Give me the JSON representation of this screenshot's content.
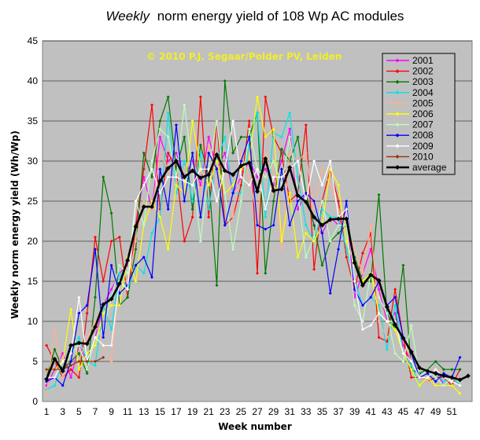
{
  "chart_data": {
    "type": "line",
    "title_em": "Weekly",
    "title_rest": "norm energy yield of 108 Wp AC modules",
    "xlabel": "Week number",
    "ylabel": "Weekly norm energy yield (Wh/Wp)",
    "copyright": "© 2010 P.J. Segaar/Polder PV, Leiden",
    "ylim": [
      0,
      45
    ],
    "xlim": [
      0.5,
      53.5
    ],
    "y_ticks": [
      0,
      5,
      10,
      15,
      20,
      25,
      30,
      35,
      40,
      45
    ],
    "x_ticks": [
      1,
      3,
      5,
      7,
      9,
      11,
      13,
      15,
      17,
      19,
      21,
      23,
      25,
      27,
      29,
      31,
      33,
      35,
      37,
      39,
      41,
      43,
      45,
      47,
      49,
      51
    ],
    "grid": true,
    "legend_position": "top-right",
    "weeks": [
      1,
      2,
      3,
      4,
      5,
      6,
      7,
      8,
      9,
      10,
      11,
      12,
      13,
      14,
      15,
      16,
      17,
      18,
      19,
      20,
      21,
      22,
      23,
      24,
      25,
      26,
      27,
      28,
      29,
      30,
      31,
      32,
      33,
      35,
      36,
      37,
      38,
      39,
      40,
      41,
      42,
      43,
      44,
      45,
      46,
      47,
      48,
      49,
      50,
      51,
      52,
      53,
      34
    ],
    "series": [
      {
        "name": "2001",
        "color": "#ff00ff",
        "values": [
          2.0,
          4.0,
          6.0,
          3.0,
          7.0,
          5.0,
          8.0,
          12.0,
          14.0,
          16.0,
          17.0,
          22.0,
          28.0,
          24.0,
          33.0,
          30.0,
          31.0,
          28.0,
          30.0,
          27.0,
          33.0,
          29.0,
          31.0,
          26.0,
          28.0,
          30.0,
          28.0,
          29.0,
          27.0,
          30.0,
          34.0,
          24.0,
          26.0,
          21.0,
          23.0,
          22.0,
          24.0,
          13.0,
          16.0,
          19.0,
          14.0,
          10.0,
          11.0,
          7.0,
          5.0,
          3.0,
          3.0,
          4.0,
          2.0,
          3.0,
          2.0,
          null,
          22.0
        ]
      },
      {
        "name": "2002",
        "color": "#ff0000",
        "values": [
          7.0,
          5.0,
          3.0,
          4.0,
          3.0,
          11.0,
          20.5,
          15.0,
          20.0,
          20.5,
          13.0,
          22.0,
          29.0,
          37.0,
          24.0,
          31.0,
          29.0,
          20.0,
          23.0,
          38.0,
          23.0,
          35.0,
          22.0,
          23.0,
          27.0,
          35.0,
          16.0,
          38.0,
          33.0,
          31.0,
          25.0,
          26.0,
          34.5,
          25.0,
          29.0,
          25.0,
          18.0,
          14.0,
          18.5,
          21.0,
          8.0,
          7.5,
          14.0,
          8.0,
          3.0,
          3.0,
          2.5,
          3.0,
          3.0,
          2.0,
          4.0,
          null,
          16.5
        ]
      },
      {
        "name": "2003",
        "color": "#007700",
        "values": [
          3.0,
          6.5,
          4.0,
          5.0,
          6.0,
          3.5,
          13.0,
          28.0,
          23.5,
          12.0,
          13.0,
          19.0,
          31.0,
          28.0,
          35.0,
          38.0,
          29.0,
          33.0,
          24.0,
          32.0,
          28.0,
          14.5,
          40.0,
          31.0,
          33.0,
          33.0,
          36.0,
          16.0,
          25.0,
          31.5,
          30.0,
          33.0,
          26.0,
          17.0,
          20.0,
          21.0,
          22.0,
          18.0,
          15.0,
          15.0,
          25.8,
          11.0,
          9.0,
          17.0,
          4.0,
          3.5,
          4.0,
          5.0,
          4.0,
          4.0,
          4.0,
          null,
          22.0
        ]
      },
      {
        "name": "2004",
        "color": "#00e5e5",
        "values": [
          1.5,
          2.0,
          5.0,
          6.0,
          8.0,
          5.0,
          4.5,
          12.0,
          9.0,
          16.0,
          14.0,
          17.0,
          16.0,
          21.0,
          23.0,
          36.0,
          26.0,
          30.0,
          25.0,
          31.0,
          24.0,
          30.0,
          33.0,
          26.0,
          26.0,
          32.0,
          36.0,
          23.0,
          33.5,
          33.0,
          36.0,
          28.0,
          22.0,
          24.0,
          23.0,
          23.0,
          19.0,
          15.0,
          12.0,
          13.0,
          12.0,
          6.5,
          12.0,
          6.0,
          4.5,
          2.0,
          3.0,
          3.5,
          2.5,
          3.0,
          2.0,
          null,
          20.0
        ]
      },
      {
        "name": "2005",
        "color": "#ffb090",
        "values": [
          1.0,
          9.0,
          3.0,
          4.5,
          5.0,
          8.0,
          10.0,
          7.0,
          5.0,
          15.0,
          15.0,
          20.0,
          25.0,
          24.0,
          31.0,
          29.0,
          27.0,
          29.0,
          31.0,
          26.0,
          32.0,
          27.0,
          29.0,
          23.0,
          31.0,
          28.0,
          23.0,
          31.0,
          29.0,
          19.0,
          31.0,
          30.0,
          31.0,
          29.0,
          27.0,
          24.0,
          22.0,
          19.0,
          16.0,
          22.0,
          10.0,
          8.0,
          9.0,
          8.0,
          5.0,
          3.0,
          2.5,
          4.0,
          3.5,
          2.5,
          2.0,
          null,
          24.0
        ]
      },
      {
        "name": "2006",
        "color": "#ffff00",
        "values": [
          4.0,
          4.0,
          5.0,
          11.5,
          4.0,
          6.0,
          7.0,
          11.0,
          12.0,
          12.0,
          18.0,
          15.0,
          22.0,
          25.0,
          23.0,
          19.0,
          27.0,
          26.0,
          35.0,
          29.0,
          27.0,
          30.0,
          26.0,
          27.0,
          29.0,
          30.0,
          38.0,
          33.0,
          34.0,
          20.0,
          26.0,
          18.0,
          21.0,
          22.0,
          29.0,
          27.0,
          20.0,
          17.0,
          15.0,
          16.0,
          11.0,
          10.0,
          9.0,
          6.0,
          4.0,
          2.0,
          3.0,
          2.0,
          2.0,
          2.0,
          1.0,
          null,
          20.0
        ]
      },
      {
        "name": "2007",
        "color": "#bbffbb",
        "values": [
          3.0,
          5.0,
          4.0,
          6.0,
          7.0,
          4.0,
          8.0,
          9.0,
          13.0,
          17.0,
          16.0,
          25.0,
          22.0,
          30.0,
          34.0,
          33.0,
          28.0,
          37.0,
          29.0,
          20.0,
          29.0,
          35.0,
          26.0,
          19.0,
          25.0,
          34.0,
          29.0,
          28.0,
          30.0,
          27.0,
          33.0,
          26.0,
          18.0,
          25.0,
          20.0,
          22.0,
          22.0,
          12.0,
          10.0,
          16.0,
          13.0,
          11.0,
          6.0,
          5.0,
          9.5,
          3.0,
          4.0,
          3.0,
          2.0,
          3.0,
          2.5,
          null,
          20.5
        ]
      },
      {
        "name": "2008",
        "color": "#0000ff",
        "values": [
          2.5,
          3.0,
          2.0,
          5.0,
          11.0,
          12.0,
          19.0,
          8.0,
          17.0,
          13.5,
          14.5,
          17.0,
          18.0,
          15.5,
          29.0,
          24.0,
          34.5,
          25.0,
          31.0,
          23.0,
          31.0,
          29.0,
          22.0,
          26.0,
          30.0,
          33.0,
          22.0,
          21.5,
          22.0,
          29.0,
          22.0,
          25.0,
          26.0,
          21.0,
          13.5,
          19.0,
          25.0,
          14.0,
          12.0,
          13.0,
          15.0,
          12.0,
          13.0,
          8.0,
          6.0,
          3.0,
          3.5,
          2.5,
          3.5,
          3.0,
          5.5,
          null,
          25.0
        ]
      },
      {
        "name": "2009",
        "color": "#ffffff",
        "values": [
          3.0,
          3.0,
          5.0,
          6.0,
          13.0,
          5.0,
          8.0,
          7.0,
          7.0,
          15.0,
          14.0,
          25.0,
          27.0,
          29.0,
          26.0,
          28.0,
          28.0,
          27.5,
          27.0,
          29.0,
          29.0,
          25.0,
          29.0,
          35.0,
          28.0,
          27.0,
          29.0,
          24.0,
          28.0,
          28.0,
          29.0,
          30.0,
          25.0,
          27.0,
          30.0,
          23.0,
          24.0,
          15.0,
          9.0,
          9.5,
          11.0,
          10.0,
          10.0,
          6.0,
          5.0,
          3.0,
          3.0,
          4.0,
          3.0,
          2.5,
          2.0,
          null,
          30.0
        ]
      },
      {
        "name": "2010",
        "color": "#993300",
        "values": [
          4.0,
          4.0,
          4.0,
          4.5,
          5.0,
          5.0,
          5.0,
          5.5,
          null,
          null,
          null,
          null,
          null,
          null,
          null,
          null,
          null,
          null,
          null,
          null,
          null,
          null,
          null,
          null,
          null,
          null,
          null,
          null,
          null,
          null,
          null,
          null,
          null,
          null,
          null,
          null,
          null,
          null,
          null,
          null,
          null,
          null,
          null,
          null,
          null,
          null,
          null,
          null,
          null,
          null,
          null,
          null,
          null
        ]
      },
      {
        "name": "average",
        "color": "#000000",
        "values": [
          2.8,
          5.3,
          3.8,
          7.0,
          7.3,
          7.2,
          9.3,
          12.1,
          12.8,
          14.7,
          17.6,
          21.8,
          24.3,
          24.3,
          27.5,
          29.1,
          30.0,
          28.0,
          28.8,
          27.9,
          28.3,
          30.8,
          28.8,
          28.3,
          29.4,
          29.8,
          26.2,
          30.3,
          26.3,
          26.5,
          29.2,
          25.7,
          24.9,
          22.0,
          22.7,
          22.8,
          22.8,
          17.3,
          14.5,
          15.8,
          15.1,
          11.8,
          9.6,
          7.9,
          6.2,
          4.2,
          3.8,
          3.5,
          3.2,
          3.0,
          2.7,
          3.2,
          23.0
        ]
      }
    ]
  }
}
